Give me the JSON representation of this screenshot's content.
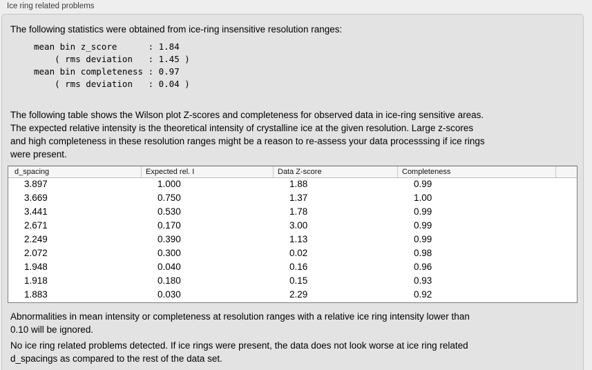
{
  "panel": {
    "title": "Ice ring related problems"
  },
  "stats": {
    "intro": "The following statistics were obtained from ice-ring insensitive resolution ranges:",
    "lines": [
      "mean bin z_score      : 1.84",
      "    ( rms deviation   : 1.45 )",
      "mean bin completeness : 0.97",
      "    ( rms deviation   : 0.04 )"
    ]
  },
  "description": {
    "lines": [
      "The following table shows the Wilson plot Z-scores and completeness for observed data in ice-ring sensitive areas.",
      "The expected relative intensity is the theoretical intensity of crystalline ice at the given resolution. Large z-scores",
      "and high completeness in these resolution ranges might be a reason to re-assess your data processsing if ice rings",
      "were present."
    ]
  },
  "table": {
    "columns": [
      "d_spacing",
      "Expected rel. I",
      "Data Z-score",
      "Completeness"
    ],
    "rows": [
      [
        "3.897",
        "1.000",
        "1.88",
        "0.99"
      ],
      [
        "3.669",
        "0.750",
        "1.37",
        "1.00"
      ],
      [
        "3.441",
        "0.530",
        "1.78",
        "0.99"
      ],
      [
        "2.671",
        "0.170",
        "3.00",
        "0.99"
      ],
      [
        "2.249",
        "0.390",
        "1.13",
        "0.99"
      ],
      [
        "2.072",
        "0.300",
        "0.02",
        "0.98"
      ],
      [
        "1.948",
        "0.040",
        "0.16",
        "0.96"
      ],
      [
        "1.918",
        "0.180",
        "0.15",
        "0.93"
      ],
      [
        "1.883",
        "0.030",
        "2.29",
        "0.92"
      ]
    ]
  },
  "notes": {
    "ignore_lines": [
      "Abnormalities in mean intensity or completeness at resolution ranges with a relative ice ring intensity lower than",
      "0.10 will be ignored."
    ],
    "result_lines": [
      "No ice ring related problems detected. If ice rings were present, the data does not look worse at ice ring related",
      "d_spacings as compared to the rest of the data set."
    ]
  },
  "colors": {
    "outer_background": "#eeeeee",
    "panel_background": "#e3e3e3",
    "panel_border": "#c6c6c6",
    "table_background": "#ffffff",
    "table_border": "#7d7d7d",
    "header_background": "#f6f6f6",
    "text": "#000000"
  }
}
